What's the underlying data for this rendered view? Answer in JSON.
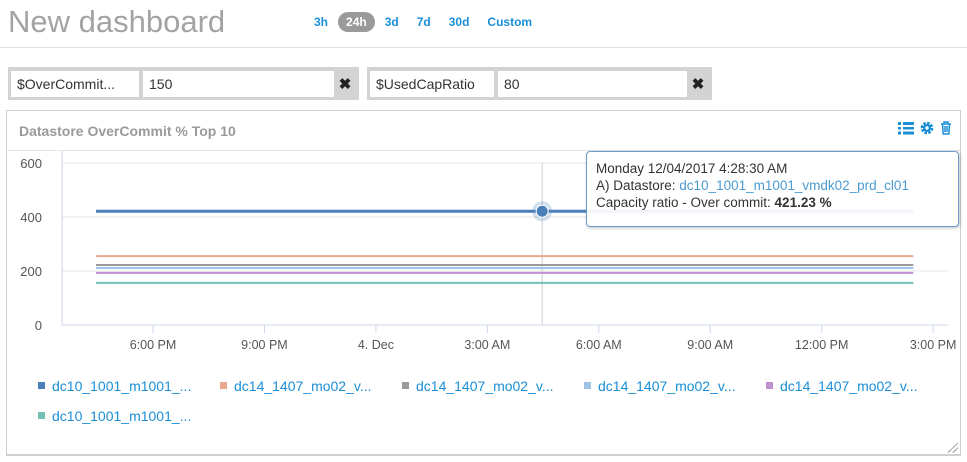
{
  "header": {
    "title": "New dashboard",
    "ranges": [
      "3h",
      "24h",
      "3d",
      "7d",
      "30d",
      "Custom"
    ],
    "active_range": "24h"
  },
  "filters": [
    {
      "label": "$OverCommit...",
      "value": "150"
    },
    {
      "label": "$UsedCapRatio",
      "value": "80"
    }
  ],
  "panel": {
    "title": "Datastore OverCommit % Top 10",
    "icons": [
      "list-icon",
      "gear-icon",
      "trash-icon"
    ]
  },
  "tooltip": {
    "date": "Monday 12/04/2017 4:28:30 AM",
    "series_prefix": "A) Datastore: ",
    "series_name": "dc10_1001_m1001_vmdk02_prd_cl01",
    "metric_label": "Capacity ratio - Over commit: ",
    "metric_value": "421.23 %"
  },
  "chart_data": {
    "type": "line",
    "title": "",
    "xlabel": "",
    "ylabel": "",
    "ylim": [
      0,
      600
    ],
    "yticks": [
      "0",
      "200",
      "400",
      "600"
    ],
    "xticks": [
      "6:00 PM",
      "9:00 PM",
      "4. Dec",
      "3:00 AM",
      "6:00 AM",
      "9:00 AM",
      "12:00 PM",
      "3:00 PM"
    ],
    "xrange": [
      "2017-12-03 15:33",
      "2017-12-04 15:24"
    ],
    "x": [
      "2017-12-03 16:28",
      "2017-12-04 04:28",
      "2017-12-04 14:28"
    ],
    "grid": true,
    "legend_placement": "bottom",
    "hover_x": "2017-12-04 04:28:30",
    "series": [
      {
        "name": "dc10_1001_m1001_...",
        "color": "#4a7fb8",
        "values": [
          421.23,
          421.23,
          421.23
        ]
      },
      {
        "name": "dc14_1407_mo02_v...",
        "color": "#e8a98e",
        "values": [
          255,
          255,
          255
        ]
      },
      {
        "name": "dc14_1407_mo02_v...",
        "color": "#9a9a9a",
        "values": [
          222,
          222,
          222
        ]
      },
      {
        "name": "dc14_1407_mo02_v...",
        "color": "#9fc3e6",
        "values": [
          211,
          211,
          211
        ]
      },
      {
        "name": "dc14_1407_mo02_v...",
        "color": "#c08fd0",
        "values": [
          193,
          193,
          193
        ]
      },
      {
        "name": "dc10_1001_m1001_...",
        "color": "#74c0b4",
        "values": [
          156,
          156,
          156
        ]
      }
    ]
  }
}
